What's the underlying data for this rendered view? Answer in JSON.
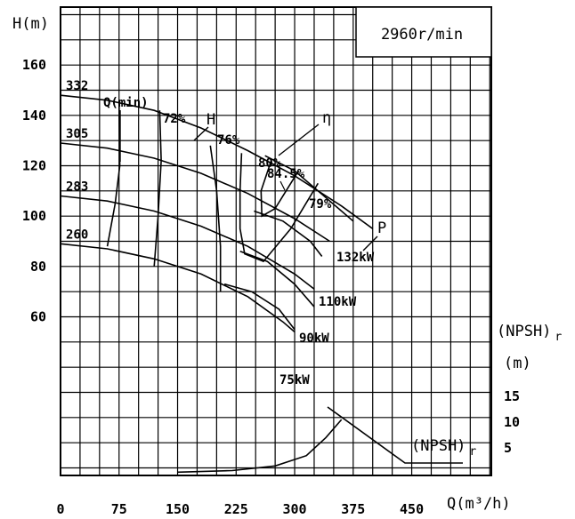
{
  "chart_data": {
    "type": "line",
    "title": "",
    "speed_label": "2960r/min",
    "xlabel": "Q(m³/h)",
    "ylabel": "H(m)",
    "npsh_axis_label": "(NPSH)",
    "npsh_axis_sub": "r",
    "npsh_axis_unit": "(m)",
    "npsh_curve_label": "(NPSH)",
    "npsh_curve_sub": "r",
    "x_ticks": [
      0,
      75,
      150,
      225,
      300,
      375,
      450
    ],
    "y_ticks": [
      60,
      80,
      100,
      120,
      140,
      160
    ],
    "npsh_ticks": [
      5,
      10,
      15
    ],
    "xlim": [
      0,
      552
    ],
    "ylim": [
      -3,
      183
    ],
    "npsh_lim": [
      0,
      20
    ],
    "head_curves": [
      {
        "impeller": "332",
        "points": [
          [
            0,
            148
          ],
          [
            60,
            146
          ],
          [
            120,
            142
          ],
          [
            180,
            135
          ],
          [
            240,
            126
          ],
          [
            300,
            116
          ],
          [
            360,
            104
          ],
          [
            400,
            95
          ]
        ]
      },
      {
        "impeller": "305",
        "points": [
          [
            0,
            129
          ],
          [
            60,
            127
          ],
          [
            120,
            123
          ],
          [
            180,
            117
          ],
          [
            240,
            109
          ],
          [
            300,
            99
          ],
          [
            345,
            90
          ]
        ]
      },
      {
        "impeller": "283",
        "points": [
          [
            0,
            108
          ],
          [
            60,
            106
          ],
          [
            120,
            102
          ],
          [
            180,
            96
          ],
          [
            240,
            88
          ],
          [
            300,
            77
          ],
          [
            325,
            71
          ]
        ]
      },
      {
        "impeller": "260",
        "points": [
          [
            0,
            89
          ],
          [
            60,
            87
          ],
          [
            120,
            83
          ],
          [
            180,
            77
          ],
          [
            240,
            68
          ],
          [
            285,
            58
          ],
          [
            300,
            54
          ]
        ]
      }
    ],
    "efficiency_contours": [
      {
        "label": "72%",
        "points": [
          [
            60,
            88
          ],
          [
            70,
            105
          ],
          [
            76,
            120
          ],
          [
            75,
            146
          ]
        ]
      },
      {
        "label": "72%",
        "points": [
          [
            120,
            80
          ],
          [
            125,
            100
          ],
          [
            129,
            122
          ],
          [
            127,
            142
          ]
        ]
      },
      {
        "label": "76%",
        "points": [
          [
            192,
            128
          ],
          [
            200,
            110
          ],
          [
            205,
            88
          ],
          [
            205,
            70
          ]
        ]
      },
      {
        "label": "76%",
        "points": [
          [
            232,
            125
          ],
          [
            230,
            110
          ],
          [
            230,
            95
          ],
          [
            236,
            85
          ],
          [
            260,
            82
          ],
          [
            295,
            95
          ],
          [
            330,
            113
          ]
        ]
      },
      {
        "label": "80%",
        "points": [
          [
            270,
            122
          ],
          [
            257,
            110
          ],
          [
            258,
            100
          ],
          [
            275,
            103
          ],
          [
            305,
            118
          ]
        ]
      }
    ],
    "power_curves": [
      {
        "label": "132kW",
        "points": [
          [
            262,
            124
          ],
          [
            300,
            118
          ],
          [
            345,
            106
          ],
          [
            375,
            98
          ]
        ]
      },
      {
        "label": "110kW",
        "points": [
          [
            248,
            102
          ],
          [
            285,
            98
          ],
          [
            320,
            90
          ],
          [
            335,
            84
          ]
        ]
      },
      {
        "label": "90kW",
        "points": [
          [
            230,
            86
          ],
          [
            265,
            82
          ],
          [
            300,
            73
          ],
          [
            325,
            64
          ]
        ]
      },
      {
        "label": "75kW",
        "points": [
          [
            210,
            73
          ],
          [
            245,
            70
          ],
          [
            280,
            63
          ],
          [
            300,
            55
          ]
        ]
      }
    ],
    "npsh_curve": {
      "points": [
        [
          150,
          0.3
        ],
        [
          220,
          0.6
        ],
        [
          275,
          1.5
        ],
        [
          315,
          3.5
        ],
        [
          340,
          7
        ],
        [
          360,
          10.5
        ]
      ]
    },
    "annotations": {
      "q_min": "Q(min)",
      "eta_symbol": "η",
      "head_symbol": "H",
      "power_symbol": "P",
      "bep": "84.5%",
      "eta_79": "79%"
    }
  }
}
